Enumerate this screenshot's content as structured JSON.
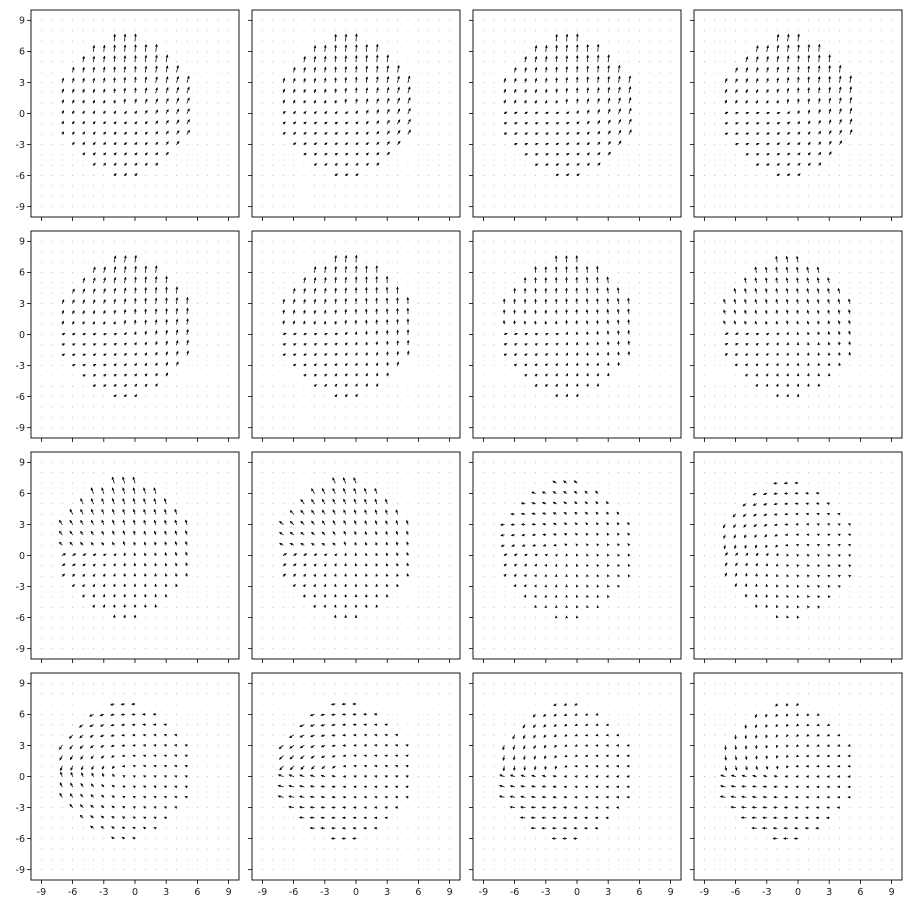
{
  "chart_data": {
    "type": "quiver",
    "layout": {
      "rows": 4,
      "cols": 4,
      "sharex": true,
      "sharey": true
    },
    "xlim": [
      -10,
      10
    ],
    "ylim": [
      -10,
      10
    ],
    "xticks": [
      -9,
      -6,
      -3,
      0,
      3,
      6,
      9
    ],
    "yticks": [
      -9,
      -6,
      -3,
      0,
      3,
      6,
      9
    ],
    "xtick_labels": [
      "-9",
      "-6",
      "-3",
      "0",
      "3",
      "6",
      "9"
    ],
    "ytick_labels": [
      "-9",
      "-6",
      "-3",
      "0",
      "3",
      "6",
      "9"
    ],
    "grid": "dot grid, spacing 1 unit",
    "field": {
      "description": "Vector field sampled on integer grid inside disk of radius 6.6 around (-1, 0.5); panels show the field evolving frame by frame",
      "grid_step": 1,
      "disk_center": [
        -1,
        0.5
      ],
      "disk_radius": 6.6,
      "panels": [
        {
          "index": 1,
          "mode_angle_deg": 65,
          "swirl": 0.0,
          "magnitude": 1.5
        },
        {
          "index": 2,
          "mode_angle_deg": 62,
          "swirl": 0.05,
          "magnitude": 1.5
        },
        {
          "index": 3,
          "mode_angle_deg": 60,
          "swirl": 0.1,
          "magnitude": 1.5
        },
        {
          "index": 4,
          "mode_angle_deg": 60,
          "swirl": 0.1,
          "magnitude": 1.5
        },
        {
          "index": 5,
          "mode_angle_deg": 62,
          "swirl": 0.12,
          "magnitude": 1.4
        },
        {
          "index": 6,
          "mode_angle_deg": 70,
          "swirl": 0.15,
          "magnitude": 1.4
        },
        {
          "index": 7,
          "mode_angle_deg": 78,
          "swirl": 0.2,
          "magnitude": 1.3
        },
        {
          "index": 8,
          "mode_angle_deg": 88,
          "swirl": 0.25,
          "magnitude": 1.2
        },
        {
          "index": 9,
          "mode_angle_deg": 95,
          "swirl": 0.3,
          "magnitude": 1.3
        },
        {
          "index": 10,
          "mode_angle_deg": 100,
          "swirl": 0.35,
          "magnitude": 1.2
        },
        {
          "index": 11,
          "mode_angle_deg": 120,
          "swirl": 0.5,
          "magnitude": 0.8
        },
        {
          "index": 12,
          "mode_angle_deg": 150,
          "swirl": 0.6,
          "magnitude": 0.8
        },
        {
          "index": 13,
          "mode_angle_deg": 170,
          "swirl": 0.4,
          "magnitude": 1.0
        },
        {
          "index": 14,
          "mode_angle_deg": 180,
          "swirl": 0.2,
          "magnitude": 1.1
        },
        {
          "index": 15,
          "mode_angle_deg": 195,
          "swirl": 0.3,
          "magnitude": 1.0
        },
        {
          "index": 16,
          "mode_angle_deg": 205,
          "swirl": 0.35,
          "magnitude": 1.0
        }
      ]
    }
  }
}
